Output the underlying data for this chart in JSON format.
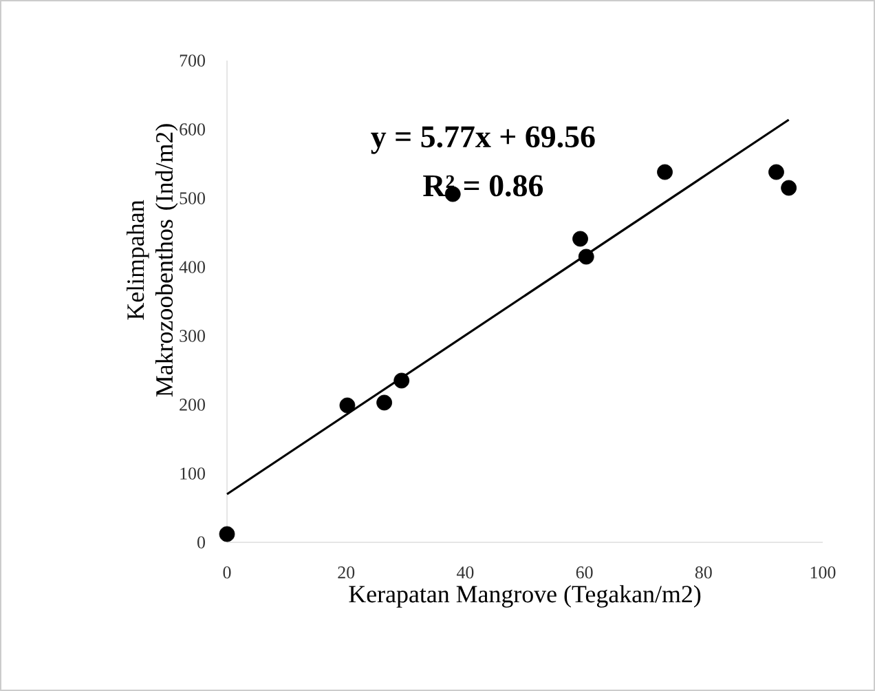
{
  "chart_data": {
    "type": "scatter",
    "xlabel": "Kerapatan Mangrove  (Tegakan/m2)",
    "ylabel": "Kelimpahan Makrozoobenthos (Ind/m2)",
    "annotations": [
      "y = 5.77x + 69.56",
      "R² = 0.86"
    ],
    "xlim": [
      0,
      100
    ],
    "xticks": [
      0,
      20,
      40,
      60,
      80,
      100
    ],
    "ylim": [
      0,
      700
    ],
    "yticks": [
      0,
      100,
      200,
      300,
      400,
      500,
      600,
      700
    ],
    "grid": false,
    "series": [
      {
        "type": "scatter",
        "color": "#000000",
        "marker": "circle",
        "x": [
          0,
          20.2,
          26.4,
          29.3,
          37.9,
          59.3,
          60.3,
          73.5,
          92.2,
          94.3
        ],
        "values": [
          12,
          199,
          203,
          235,
          506,
          441,
          415,
          538,
          538,
          515
        ]
      },
      {
        "type": "line",
        "color": "#000000",
        "marker": "none",
        "line_style": "solid",
        "x": [
          0,
          94.3
        ],
        "values": [
          70,
          614
        ]
      }
    ]
  }
}
